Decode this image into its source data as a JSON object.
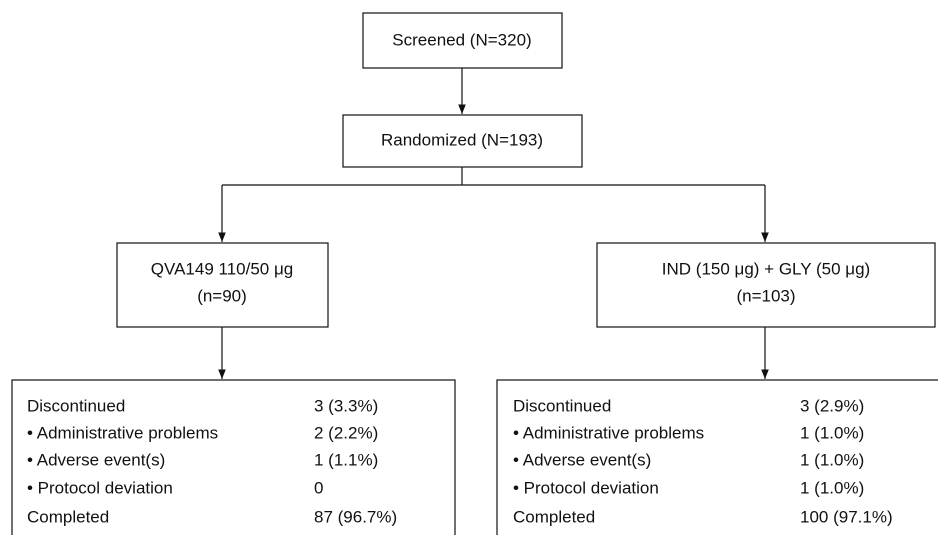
{
  "nodes": [
    {
      "label": "Screened (N=320)"
    },
    {
      "label": "Randomized (N=193)"
    }
  ],
  "arms": [
    {
      "title": "QVA149 110/50 μg",
      "n": "(n=90)",
      "rows": [
        [
          "Discontinued",
          "3 (3.3%)"
        ],
        [
          "• Administrative problems",
          "2 (2.2%)"
        ],
        [
          "• Adverse event(s)",
          "1 (1.1%)"
        ],
        [
          "• Protocol deviation",
          "0"
        ],
        [
          "Completed",
          "87 (96.7%)"
        ]
      ]
    },
    {
      "title": "IND (150 μg) + GLY (50 μg)",
      "n": "(n=103)",
      "rows": [
        [
          "Discontinued",
          "3 (2.9%)"
        ],
        [
          "• Administrative problems",
          "1 (1.0%)"
        ],
        [
          "• Adverse event(s)",
          "1 (1.0%)"
        ],
        [
          "• Protocol deviation",
          "1 (1.0%)"
        ],
        [
          "Completed",
          "100 (97.1%)"
        ]
      ]
    }
  ]
}
